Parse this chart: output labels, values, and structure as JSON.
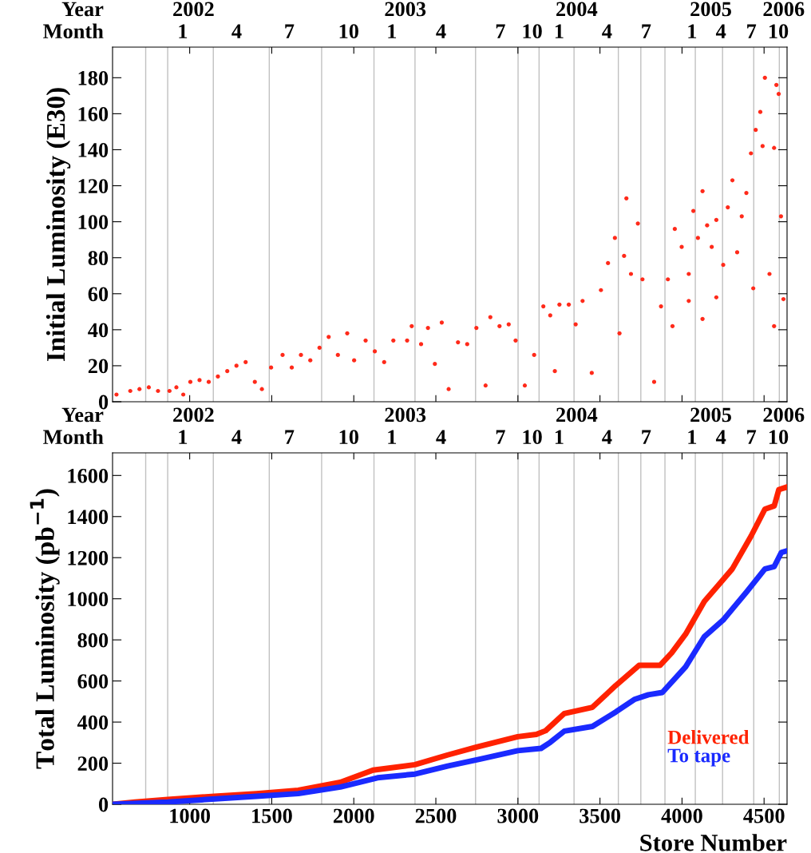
{
  "chart_data": [
    {
      "type": "scatter",
      "ylabel": "Initial Luminosity (E30)",
      "color": "#ff2a1a",
      "marker": "circle",
      "tick_labels": "y",
      "grid": false,
      "x": [
        554,
        638,
        694,
        751,
        807,
        877,
        919,
        961,
        1004,
        1060,
        1116,
        1172,
        1229,
        1285,
        1341,
        1397,
        1440,
        1496,
        1566,
        1622,
        1678,
        1735,
        1791,
        1847,
        1903,
        1960,
        2002,
        2072,
        2128,
        2185,
        2241,
        2325,
        2353,
        2410,
        2452,
        2494,
        2536,
        2578,
        2635,
        2691,
        2747,
        2803,
        2832,
        2888,
        2944,
        2986,
        3042,
        3099,
        3155,
        3197,
        3225,
        3253,
        3310,
        3352,
        3394,
        3450,
        3506,
        3549,
        3591,
        3619,
        3647,
        3661,
        3689,
        3731,
        3759,
        3830,
        3872,
        3914,
        3942,
        3956,
        3998,
        4041,
        4069,
        4097,
        4125,
        4153,
        4181,
        4209,
        4251,
        4279,
        4307,
        4336,
        4364,
        4392,
        4420,
        4449,
        4477,
        4491,
        4505,
        4533,
        4561,
        4575,
        4589,
        4603,
        4618,
        4561,
        4041,
        4209,
        4434,
        4125
      ],
      "values": [
        4,
        6,
        7,
        8,
        6,
        6,
        8,
        4,
        11,
        12,
        11,
        14,
        17,
        20,
        22,
        11,
        7,
        19,
        26,
        19,
        26,
        23,
        30,
        36,
        26,
        38,
        23,
        34,
        28,
        22,
        34,
        34,
        42,
        32,
        41,
        21,
        44,
        7,
        33,
        32,
        41,
        9,
        47,
        42,
        43,
        34,
        9,
        26,
        53,
        48,
        17,
        54,
        54,
        43,
        56,
        16,
        62,
        77,
        91,
        38,
        81,
        113,
        71,
        99,
        68,
        11,
        53,
        68,
        42,
        96,
        86,
        71,
        106,
        91,
        117,
        98,
        86,
        101,
        76,
        108,
        123,
        83,
        103,
        116,
        138,
        151,
        161,
        142,
        180,
        71,
        141,
        176,
        171,
        103,
        57,
        42,
        56,
        58,
        63,
        46
      ],
      "xlim": [
        530,
        4640
      ],
      "ylim": [
        0,
        197
      ],
      "yticks": [
        0,
        20,
        40,
        60,
        80,
        100,
        120,
        140,
        160,
        180
      ],
      "annotations": [
        "Year",
        "2002",
        "2003",
        "2004",
        "2005",
        "2006",
        "Month",
        "1",
        "4",
        "7",
        "10",
        "1",
        "4",
        "7",
        "10",
        "1",
        "4",
        "7",
        "1",
        "4",
        "7",
        "10"
      ],
      "ref_lines": [
        {
          "axis": "x",
          "value": 732,
          "color": "#c0c0c0"
        },
        {
          "axis": "x",
          "value": 866,
          "color": "#c0c0c0"
        },
        {
          "axis": "x",
          "value": 1144,
          "color": "#c0c0c0"
        },
        {
          "axis": "x",
          "value": 1485,
          "color": "#c0c0c0"
        },
        {
          "axis": "x",
          "value": 1804,
          "color": "#c0c0c0"
        },
        {
          "axis": "x",
          "value": 2123,
          "color": "#c0c0c0"
        },
        {
          "axis": "x",
          "value": 2373,
          "color": "#c0c0c0"
        },
        {
          "axis": "x",
          "value": 2742,
          "color": "#c0c0c0"
        },
        {
          "axis": "x",
          "value": 3001,
          "color": "#c0c0c0"
        },
        {
          "axis": "x",
          "value": 3129,
          "color": "#c0c0c0"
        },
        {
          "axis": "x",
          "value": 3342,
          "color": "#c0c0c0"
        },
        {
          "axis": "x",
          "value": 3612,
          "color": "#c0c0c0"
        },
        {
          "axis": "x",
          "value": 3749,
          "color": "#c0c0c0"
        },
        {
          "axis": "x",
          "value": 3896,
          "color": "#c0c0c0"
        },
        {
          "axis": "x",
          "value": 4081,
          "color": "#c0c0c0"
        },
        {
          "axis": "x",
          "value": 4247,
          "color": "#c0c0c0"
        },
        {
          "axis": "x",
          "value": 4437,
          "color": "#c0c0c0"
        },
        {
          "axis": "x",
          "value": 4593,
          "color": "#c0c0c0"
        }
      ]
    },
    {
      "type": "line",
      "xlabel": "Store Number",
      "ylabel": "Total Luminosity (pb$^{−1}$)",
      "legend": "bottom right",
      "grid": false,
      "series": [
        {
          "name": "Delivered",
          "color": "#ff2200",
          "x": [
            530,
            667,
            866,
            1151,
            1407,
            1662,
            1918,
            2117,
            2373,
            2572,
            2743,
            2999,
            3112,
            3169,
            3283,
            3454,
            3596,
            3738,
            3866,
            3937,
            4022,
            4136,
            4221,
            4306,
            4420,
            4505,
            4562,
            4590,
            4633
          ],
          "values": [
            0,
            11,
            23,
            39,
            52,
            68,
            107,
            166,
            193,
            240,
            277,
            329,
            340,
            358,
            442,
            472,
            578,
            676,
            676,
            737,
            828,
            987,
            1066,
            1145,
            1304,
            1436,
            1452,
            1531,
            1542
          ]
        },
        {
          "name": "To tape",
          "color": "#1a2aff",
          "x": [
            530,
            866,
            1407,
            1662,
            1918,
            2145,
            2373,
            2572,
            2771,
            2999,
            3141,
            3198,
            3283,
            3454,
            3596,
            3709,
            3795,
            3880,
            4022,
            4136,
            4250,
            4392,
            4505,
            4562,
            4605,
            4633
          ],
          "values": [
            0,
            11,
            39,
            52,
            84,
            129,
            147,
            186,
            220,
            261,
            272,
            302,
            356,
            379,
            449,
            510,
            533,
            544,
            669,
            816,
            896,
            1032,
            1145,
            1157,
            1225,
            1232
          ]
        }
      ],
      "xlim": [
        530,
        4640
      ],
      "ylim": [
        0,
        1710
      ],
      "xticks": [
        1000,
        1500,
        2000,
        2500,
        3000,
        3500,
        4000,
        4500
      ],
      "yticks": [
        0,
        200,
        400,
        600,
        800,
        1000,
        1200,
        1400,
        1600
      ],
      "annotations": [
        "Year",
        "2002",
        "2003",
        "2004",
        "2005",
        "2006",
        "Month",
        "1",
        "4",
        "7",
        "10",
        "1",
        "4",
        "7",
        "10",
        "1",
        "4",
        "7",
        "1",
        "4",
        "7",
        "10"
      ],
      "ref_lines": [
        {
          "axis": "x",
          "value": 732,
          "color": "#c0c0c0"
        },
        {
          "axis": "x",
          "value": 866,
          "color": "#c0c0c0"
        },
        {
          "axis": "x",
          "value": 1144,
          "color": "#c0c0c0"
        },
        {
          "axis": "x",
          "value": 1485,
          "color": "#c0c0c0"
        },
        {
          "axis": "x",
          "value": 1804,
          "color": "#c0c0c0"
        },
        {
          "axis": "x",
          "value": 2123,
          "color": "#c0c0c0"
        },
        {
          "axis": "x",
          "value": 2373,
          "color": "#c0c0c0"
        },
        {
          "axis": "x",
          "value": 2742,
          "color": "#c0c0c0"
        },
        {
          "axis": "x",
          "value": 3001,
          "color": "#c0c0c0"
        },
        {
          "axis": "x",
          "value": 3129,
          "color": "#c0c0c0"
        },
        {
          "axis": "x",
          "value": 3342,
          "color": "#c0c0c0"
        },
        {
          "axis": "x",
          "value": 3612,
          "color": "#c0c0c0"
        },
        {
          "axis": "x",
          "value": 3749,
          "color": "#c0c0c0"
        },
        {
          "axis": "x",
          "value": 3896,
          "color": "#c0c0c0"
        },
        {
          "axis": "x",
          "value": 4081,
          "color": "#c0c0c0"
        },
        {
          "axis": "x",
          "value": 4247,
          "color": "#c0c0c0"
        },
        {
          "axis": "x",
          "value": 4437,
          "color": "#c0c0c0"
        },
        {
          "axis": "x",
          "value": 4593,
          "color": "#c0c0c0"
        }
      ]
    }
  ]
}
